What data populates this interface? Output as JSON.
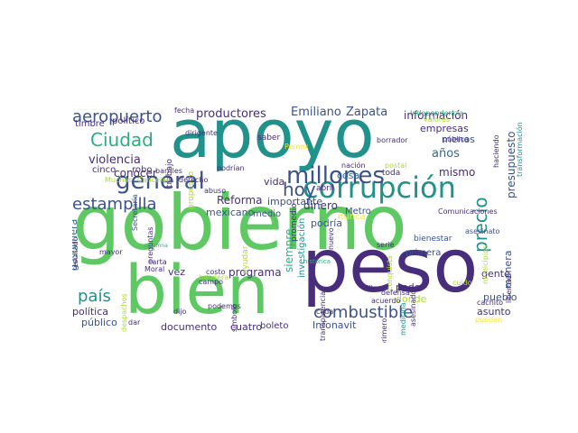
{
  "palette": {
    "teal": "#21918c",
    "green": "#5ec962",
    "navy": "#3b528b",
    "purple": "#440154",
    "indigo": "#472d7b",
    "lime": "#addc30",
    "yellow": "#fde725",
    "cyan": "#28ae80",
    "slate": "#31688e"
  },
  "words": [
    "apoyo",
    "gobierno",
    "peso",
    "bien",
    "corrupción",
    "millones",
    "general",
    "estampilla",
    "combustible",
    "Ciudad",
    "aeropuerto",
    "precio",
    "hoy",
    "país",
    "productores",
    "Emiliano",
    "Zapata",
    "información",
    "presupuesto",
    "violencia",
    "conocer",
    "gasolinera",
    "programa",
    "Reforma",
    "siempre",
    "mexicano",
    "poder",
    "mismo",
    "empresas",
    "menos",
    "años",
    "dinero",
    "podría",
    "nunca",
    "cosa",
    "vida",
    "importante",
    "medio",
    "política",
    "público",
    "documento",
    "cuatro",
    "boleto",
    "Infonavit",
    "pueblo",
    "gente",
    "asunto",
    "donde",
    "primera",
    "manera",
    "bienestar",
    "Comunicaciones",
    "timbre",
    "político",
    "fecha",
    "dirigente",
    "robo",
    "cinco",
    "trabajo",
    "propósito",
    "barriles",
    "Cancelar",
    "Muchas",
    "derecho",
    "abuso",
    "podrían",
    "saber",
    "nación",
    "postal",
    "Pemex",
    "valores",
    "Independencia",
    "borrador",
    "haciendo",
    "transformación",
    "toda",
    "Metro",
    "investigación",
    "promedio",
    "abril",
    "nuevo",
    "serie",
    "histórica",
    "litro",
    "defensa",
    "acuerdo",
    "medicina",
    "asesinado",
    "libertad",
    "cuido",
    "cachito",
    "pueden",
    "primero",
    "transparencia",
    "cada",
    "podemos",
    "dijo",
    "símbolo",
    "costo",
    "carta",
    "campo",
    "bandera",
    "Moral",
    "dar",
    "despachos",
    "preguntas",
    "Secretaría",
    "mayor",
    "resultado",
    "columna",
    "vez",
    "ayudar",
    "conquista",
    "municipios",
    "pública",
    "asesinato"
  ]
}
